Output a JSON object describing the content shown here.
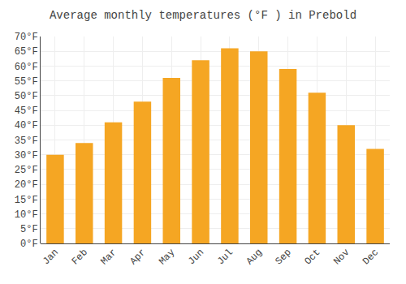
{
  "chart_data": {
    "type": "bar",
    "title": "Average monthly temperatures (°F ) in Prebold",
    "categories": [
      "Jan",
      "Feb",
      "Mar",
      "Apr",
      "May",
      "Jun",
      "Jul",
      "Aug",
      "Sep",
      "Oct",
      "Nov",
      "Dec"
    ],
    "values": [
      30,
      34,
      41,
      48,
      56,
      62,
      66,
      65,
      59,
      51,
      40,
      32
    ],
    "color": "#F5A623",
    "ylim": [
      0,
      70
    ],
    "yticks": [
      {
        "value": 0,
        "label": "0°F"
      },
      {
        "value": 5,
        "label": "5°F"
      },
      {
        "value": 10,
        "label": "10°F"
      },
      {
        "value": 15,
        "label": "15°F"
      },
      {
        "value": 20,
        "label": "20°F"
      },
      {
        "value": 25,
        "label": "25°F"
      },
      {
        "value": 30,
        "label": "30°F"
      },
      {
        "value": 35,
        "label": "35°F"
      },
      {
        "value": 40,
        "label": "40°F"
      },
      {
        "value": 45,
        "label": "45°F"
      },
      {
        "value": 50,
        "label": "50°F"
      },
      {
        "value": 55,
        "label": "55°F"
      },
      {
        "value": 60,
        "label": "60°F"
      },
      {
        "value": 65,
        "label": "65°F"
      },
      {
        "value": 70,
        "label": "70°F"
      }
    ],
    "grid": true
  }
}
